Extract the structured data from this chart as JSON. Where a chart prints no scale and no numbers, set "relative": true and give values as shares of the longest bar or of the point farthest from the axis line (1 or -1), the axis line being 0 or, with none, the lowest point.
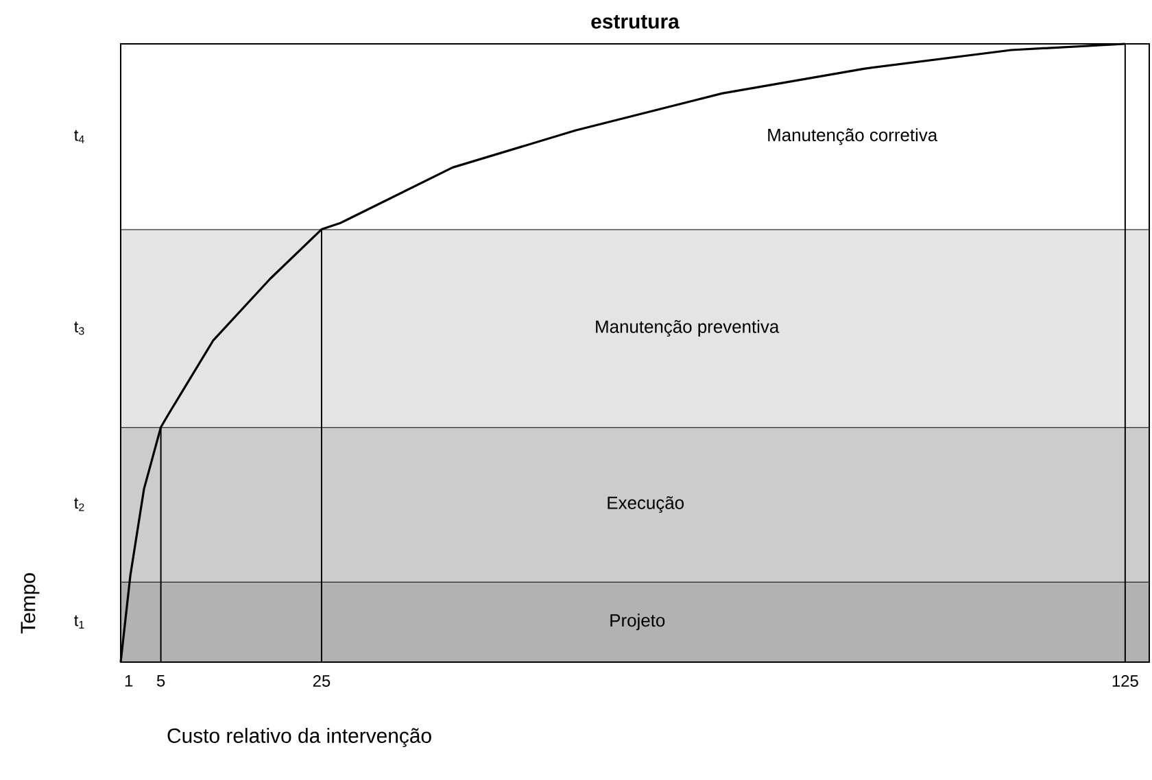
{
  "chart_data": {
    "type": "line",
    "title": "estrutura",
    "xlabel": "Custo relativo da intervenção",
    "ylabel": "Tempo",
    "relative": true,
    "tick_labels": "x",
    "xlim": [
      0,
      128
    ],
    "xticks": [
      1,
      5,
      25,
      125
    ],
    "series": [
      {
        "color": "#000000",
        "x": [
          0,
          1.2,
          2.9,
          5,
          5.9,
          11.5,
          18.6,
          25,
          27.3,
          41.3,
          56.6,
          74.9,
          92.6,
          110.8,
          125
        ],
        "values": [
          0,
          0.14,
          0.28,
          0.38,
          0.4,
          0.52,
          0.62,
          0.7,
          0.71,
          0.8,
          0.86,
          0.92,
          0.96,
          0.99,
          1.0
        ]
      }
    ],
    "bands": [
      {
        "axis": "y",
        "from": 0,
        "to": 0.13,
        "color": "#b2b2b2",
        "label": "Projeto"
      },
      {
        "axis": "y",
        "from": 0.13,
        "to": 0.38,
        "color": "#cccccc",
        "label": "Execução"
      },
      {
        "axis": "y",
        "from": 0.38,
        "to": 0.7,
        "color": "#e4e4e4",
        "label": "Manutenção preventiva"
      },
      {
        "axis": "y",
        "from": 0.7,
        "to": 1,
        "color": "#ffffff",
        "label": "Manutenção corretiva"
      }
    ],
    "ref_lines": [
      {
        "axis": "x",
        "value": 5,
        "color": "#000000"
      },
      {
        "axis": "x",
        "value": 25,
        "color": "#000000"
      },
      {
        "axis": "x",
        "value": 125,
        "color": "#000000"
      }
    ],
    "annotations": [
      "t$_{1}$",
      "t$_{2}$",
      "t$_{3}$",
      "t$_{4}$"
    ],
    "grid": false,
    "marker": "none",
    "line_style": "solid"
  }
}
